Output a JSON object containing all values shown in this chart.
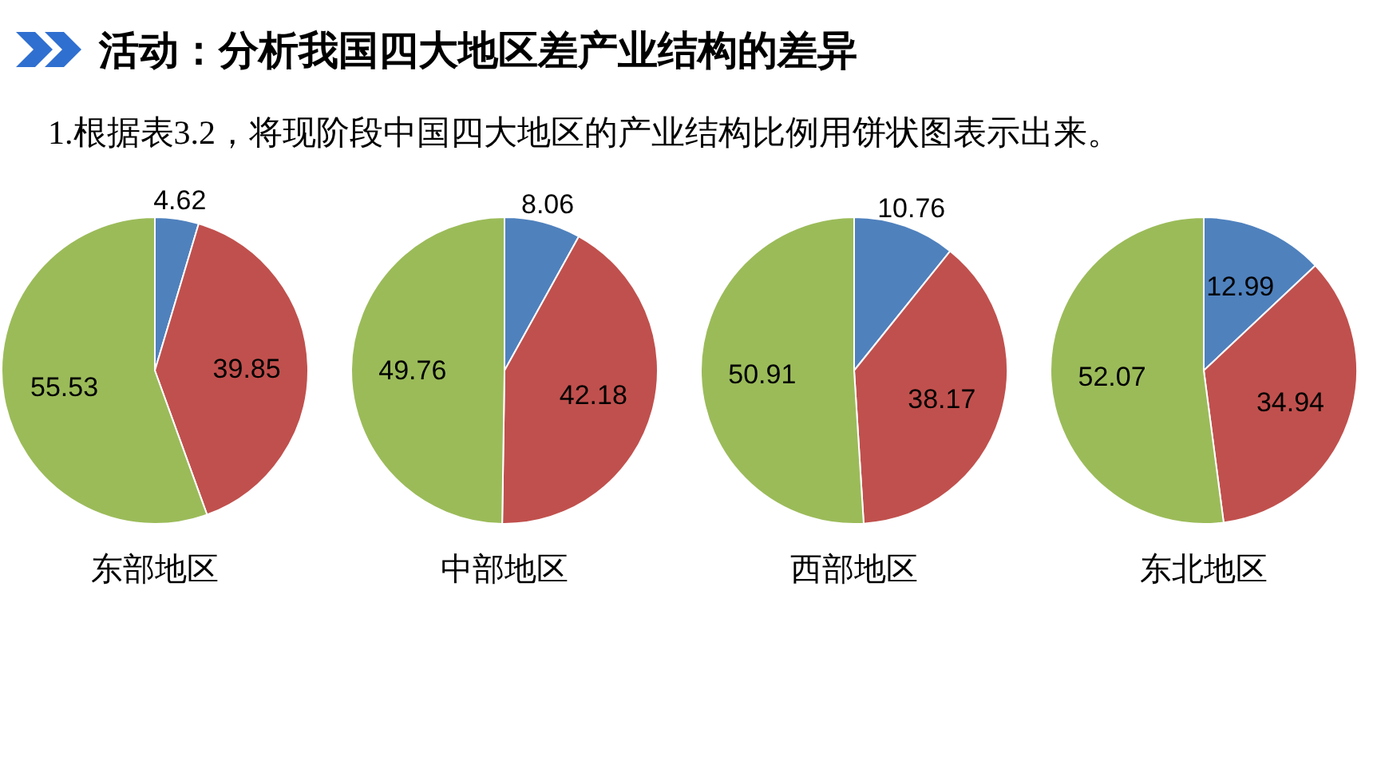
{
  "chart_data": [
    {
      "type": "other",
      "title": "活动：分析我国四大地区差产业结构的差异",
      "subtitle": "1.根据表3.2，将现阶段中国四大地区的产业结构比例用饼状图表示出来。"
    },
    {
      "type": "pie",
      "title": "东部地区",
      "categories": [
        null,
        null,
        null
      ],
      "values": [
        4.62,
        39.85,
        55.53
      ],
      "colors": [
        "#4f81bd",
        "#c0504d",
        "#9bbb59"
      ],
      "data_labels": true
    },
    {
      "type": "pie",
      "title": "中部地区",
      "categories": [
        null,
        null,
        null
      ],
      "values": [
        8.06,
        42.18,
        49.76
      ],
      "colors": [
        "#4f81bd",
        "#c0504d",
        "#9bbb59"
      ],
      "data_labels": true
    },
    {
      "type": "pie",
      "title": "西部地区",
      "categories": [
        null,
        null,
        null
      ],
      "values": [
        10.76,
        38.17,
        50.91
      ],
      "colors": [
        "#4f81bd",
        "#c0504d",
        "#9bbb59"
      ],
      "data_labels": true
    },
    {
      "type": "pie",
      "title": "东北地区",
      "categories": [
        null,
        null,
        null
      ],
      "values": [
        12.99,
        34.94,
        52.07
      ],
      "colors": [
        "#4f81bd",
        "#c0504d",
        "#9bbb59"
      ],
      "data_labels": true
    }
  ]
}
